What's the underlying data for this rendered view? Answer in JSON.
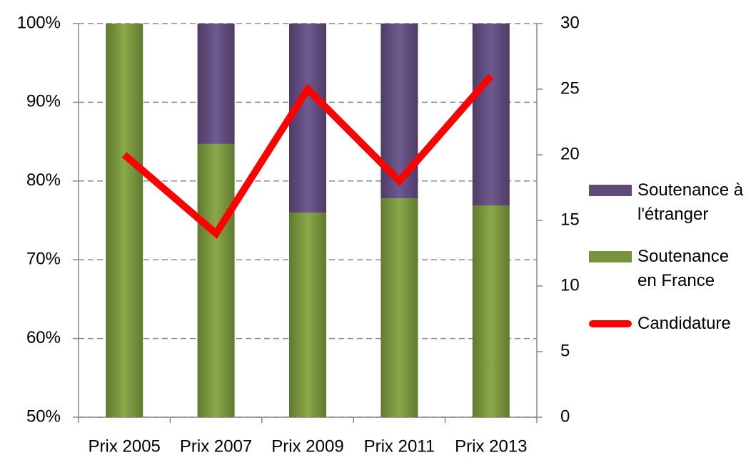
{
  "chart_data": {
    "type": "bar",
    "stacked": true,
    "categories": [
      "Prix 2005",
      "Prix 2007",
      "Prix 2009",
      "Prix 2011",
      "Prix 2013"
    ],
    "series": [
      {
        "name": "Soutenance en France",
        "color": "#77933c",
        "values": [
          100,
          84.7,
          76,
          77.8,
          76.9
        ]
      },
      {
        "name": "Soutenance à l'étranger",
        "color": "#604a7b",
        "values": [
          0,
          15.3,
          24,
          22.2,
          23.1
        ]
      },
      {
        "name": "Candidature",
        "type": "line",
        "axis": "y2",
        "color": "#ff0000",
        "values": [
          20,
          14,
          25,
          18,
          26
        ]
      }
    ],
    "ylim": [
      50,
      100
    ],
    "yticks": [
      {
        "value": 50,
        "label": "50%"
      },
      {
        "value": 60,
        "label": "60%"
      },
      {
        "value": 70,
        "label": "70%"
      },
      {
        "value": 80,
        "label": "80%"
      },
      {
        "value": 90,
        "label": "90%"
      },
      {
        "value": 100,
        "label": "100%"
      }
    ],
    "y2lim": [
      0,
      30
    ],
    "y2ticks": [
      0,
      5,
      10,
      15,
      20,
      25,
      30
    ],
    "grid": true,
    "legend": "right"
  }
}
